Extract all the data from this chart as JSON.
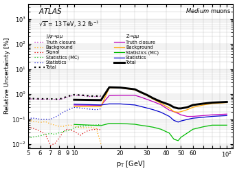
{
  "ylim": [
    0.007,
    4000
  ],
  "xlim": [
    5.0,
    110
  ],
  "jpsi_pt": [
    5.0,
    5.5,
    6.0,
    6.5,
    7.0,
    7.5,
    8.0,
    8.5,
    9.0,
    9.5,
    10.0,
    11.0,
    12.0,
    13.0,
    14.0,
    15.0
  ],
  "jpsi_truth": [
    0.65,
    0.64,
    0.63,
    0.63,
    0.63,
    0.62,
    0.61,
    0.67,
    0.76,
    0.84,
    0.9,
    0.88,
    0.84,
    0.8,
    0.8,
    0.82
  ],
  "jpsi_background": [
    0.09,
    0.082,
    0.075,
    0.08,
    0.065,
    0.058,
    0.052,
    0.052,
    0.058,
    0.058,
    0.053,
    0.046,
    0.046,
    0.048,
    0.042,
    0.01
  ],
  "jpsi_signal": [
    0.048,
    0.042,
    0.033,
    0.025,
    0.009,
    0.011,
    0.018,
    0.032,
    0.04,
    0.037,
    0.033,
    0.023,
    0.033,
    0.038,
    0.04,
    0.038
  ],
  "jpsi_statmc": [
    0.018,
    0.02,
    0.022,
    0.025,
    0.027,
    0.025,
    0.029,
    0.032,
    0.035,
    0.038,
    0.046,
    0.052,
    0.055,
    0.057,
    0.059,
    0.062
  ],
  "jpsi_stat": [
    0.11,
    0.11,
    0.1,
    0.1,
    0.1,
    0.12,
    0.15,
    0.19,
    0.23,
    0.26,
    0.3,
    0.28,
    0.26,
    0.25,
    0.24,
    0.26
  ],
  "jpsi_total": [
    0.67,
    0.66,
    0.65,
    0.65,
    0.65,
    0.63,
    0.63,
    0.71,
    0.8,
    0.89,
    0.95,
    0.92,
    0.88,
    0.84,
    0.84,
    0.86
  ],
  "z_pt": [
    10.0,
    15.0,
    17.0,
    20.0,
    25.0,
    27.0,
    30.0,
    33.0,
    37.0,
    42.0,
    45.0,
    48.0,
    50.0,
    55.0,
    60.0,
    70.0,
    80.0,
    100.0
  ],
  "z_truth": [
    0.37,
    0.36,
    0.88,
    0.9,
    0.9,
    0.78,
    0.62,
    0.5,
    0.38,
    0.23,
    0.2,
    0.17,
    0.15,
    0.13,
    0.13,
    0.14,
    0.15,
    0.16
  ],
  "z_background": [
    0.32,
    0.32,
    1.8,
    1.78,
    1.48,
    1.18,
    0.88,
    0.63,
    0.43,
    0.28,
    0.2,
    0.19,
    0.2,
    0.24,
    0.3,
    0.37,
    0.42,
    0.46
  ],
  "z_statmc": [
    0.062,
    0.056,
    0.068,
    0.068,
    0.063,
    0.058,
    0.053,
    0.048,
    0.04,
    0.028,
    0.016,
    0.014,
    0.019,
    0.028,
    0.04,
    0.05,
    0.058,
    0.058
  ],
  "z_stat": [
    0.4,
    0.37,
    0.41,
    0.41,
    0.37,
    0.33,
    0.28,
    0.24,
    0.19,
    0.13,
    0.09,
    0.077,
    0.085,
    0.098,
    0.11,
    0.12,
    0.13,
    0.14
  ],
  "z_total": [
    0.6,
    0.58,
    1.88,
    1.83,
    1.56,
    1.24,
    0.93,
    0.68,
    0.5,
    0.38,
    0.3,
    0.27,
    0.27,
    0.3,
    0.37,
    0.42,
    0.46,
    0.49
  ],
  "colors": {
    "truth": "#BB00BB",
    "background": "#FFA500",
    "signal": "#DD0000",
    "statmc": "#00BB00",
    "stat": "#0000CC",
    "total": "#000000"
  }
}
